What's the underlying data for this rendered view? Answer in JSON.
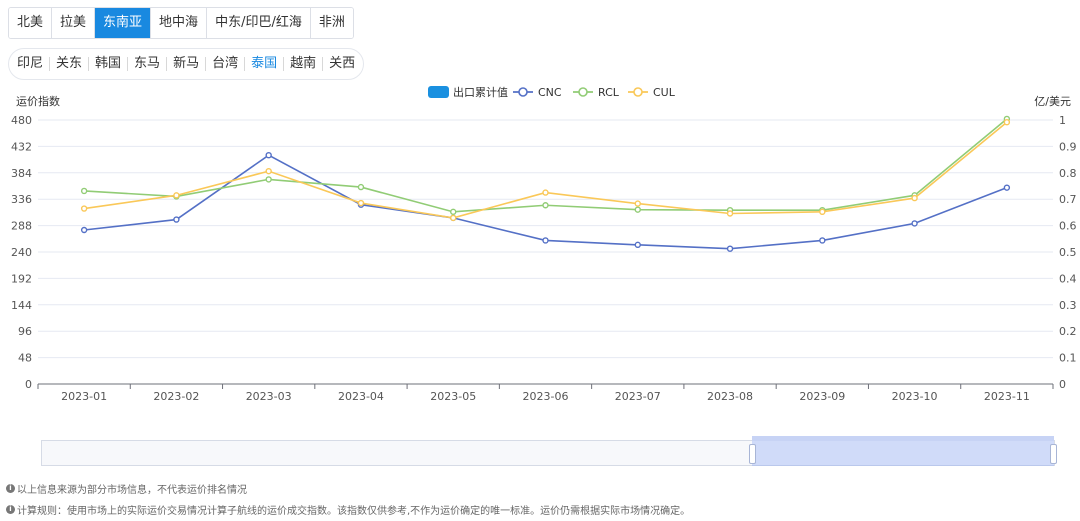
{
  "region_tabs": [
    {
      "label": "北美",
      "active": false
    },
    {
      "label": "拉美",
      "active": false
    },
    {
      "label": "东南亚",
      "active": true
    },
    {
      "label": "地中海",
      "active": false
    },
    {
      "label": "中东/印巴/红海",
      "active": false
    },
    {
      "label": "非洲",
      "active": false
    }
  ],
  "country_tabs": [
    {
      "label": "印尼",
      "active": false
    },
    {
      "label": "关东",
      "active": false
    },
    {
      "label": "韩国",
      "active": false
    },
    {
      "label": "东马",
      "active": false
    },
    {
      "label": "新马",
      "active": false
    },
    {
      "label": "台湾",
      "active": false
    },
    {
      "label": "泰国",
      "active": true
    },
    {
      "label": "越南",
      "active": false
    },
    {
      "label": "关西",
      "active": false
    }
  ],
  "chart_data": {
    "type": "line",
    "ylabel": "运价指数",
    "y2label": "亿/美元",
    "categories": [
      "2023-01",
      "2023-02",
      "2023-03",
      "2023-04",
      "2023-05",
      "2023-06",
      "2023-07",
      "2023-08",
      "2023-09",
      "2023-10",
      "2023-11"
    ],
    "ylim": [
      0,
      480
    ],
    "yticks": [
      0,
      48,
      96,
      144,
      192,
      240,
      288,
      336,
      384,
      432,
      480
    ],
    "y2lim": [
      0,
      1
    ],
    "y2ticks": [
      "0",
      "0.1",
      "0.2",
      "0.3",
      "0.4",
      "0.5",
      "0.6",
      "0.7",
      "0.8",
      "0.9",
      "1"
    ],
    "legend_position": "top-center",
    "grid": true,
    "legend_bar": {
      "name": "出口累计值",
      "color": "#1a90e0"
    },
    "series": [
      {
        "name": "CNC",
        "color": "#5470c6",
        "values": [
          280,
          299,
          416,
          326,
          302,
          261,
          253,
          246,
          261,
          292,
          357
        ]
      },
      {
        "name": "RCL",
        "color": "#91cc75",
        "values": [
          351,
          341,
          372,
          358,
          313,
          325,
          317,
          316,
          316,
          343,
          482
        ]
      },
      {
        "name": "CUL",
        "color": "#fac858",
        "values": [
          319,
          343,
          387,
          329,
          302,
          348,
          328,
          310,
          313,
          338,
          476
        ]
      }
    ]
  },
  "notes": [
    "以上信息来源为部分市场信息，不代表运价排名情况",
    "计算规则：使用市场上的实际运价交易情况计算子航线的运价成交指数。该指数仅供参考,不作为运价确定的唯一标准。运价仍需根据实际市场情况确定。"
  ]
}
